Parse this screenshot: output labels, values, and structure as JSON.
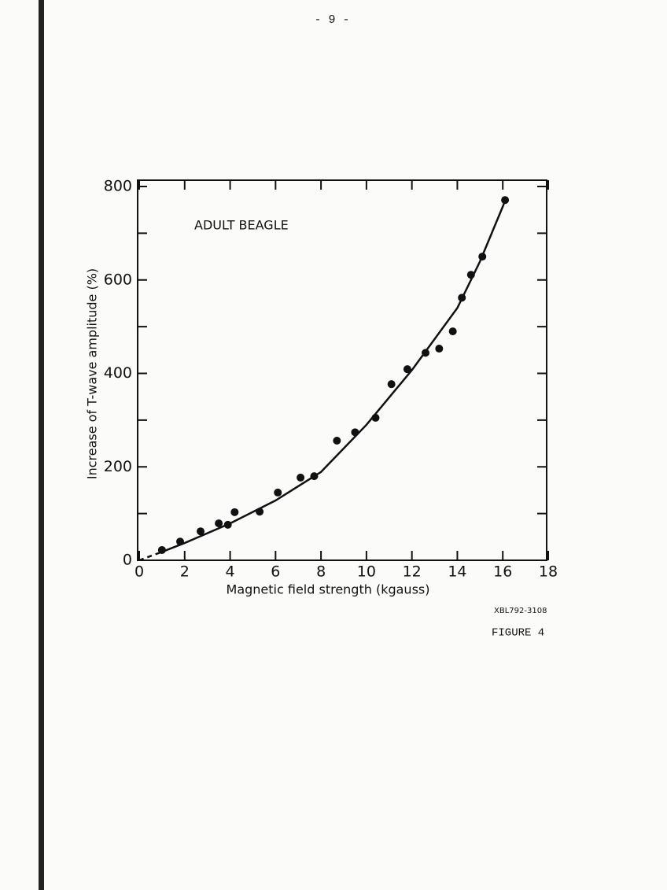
{
  "page_number": "- 9 -",
  "chart_data": {
    "type": "scatter",
    "annotation": "ADULT BEAGLE",
    "xlabel": "Magnetic field strength  (kgauss)",
    "ylabel": "Increase of T-wave amplitude  (%)",
    "xlim": [
      0,
      18
    ],
    "xticks": [
      0,
      2,
      4,
      6,
      8,
      10,
      12,
      14,
      16,
      18
    ],
    "ylim": [
      0,
      800
    ],
    "yticks": [
      0,
      200,
      400,
      600,
      800
    ],
    "yminor_ticks": [
      100,
      300,
      500,
      700
    ],
    "color": "#111111",
    "x": [
      1.0,
      1.8,
      2.7,
      3.5,
      3.9,
      4.2,
      5.3,
      6.1,
      7.1,
      7.7,
      8.7,
      9.5,
      10.4,
      11.1,
      11.8,
      12.6,
      13.2,
      13.8,
      14.2,
      14.6,
      15.1,
      16.1
    ],
    "values": [
      22,
      40,
      62,
      79,
      76,
      103,
      104,
      145,
      177,
      180,
      256,
      274,
      305,
      377,
      409,
      444,
      453,
      490,
      562,
      611,
      650,
      771
    ],
    "fit": {
      "x": [
        0,
        1,
        2,
        4,
        6,
        8,
        10,
        12,
        14,
        15,
        16,
        16.1
      ],
      "values": [
        0,
        18,
        37,
        79,
        128,
        189,
        290,
        407,
        540,
        640,
        757,
        770
      ]
    }
  },
  "figure_code": "XBL792-3108",
  "figure_label": "FIGURE  4"
}
